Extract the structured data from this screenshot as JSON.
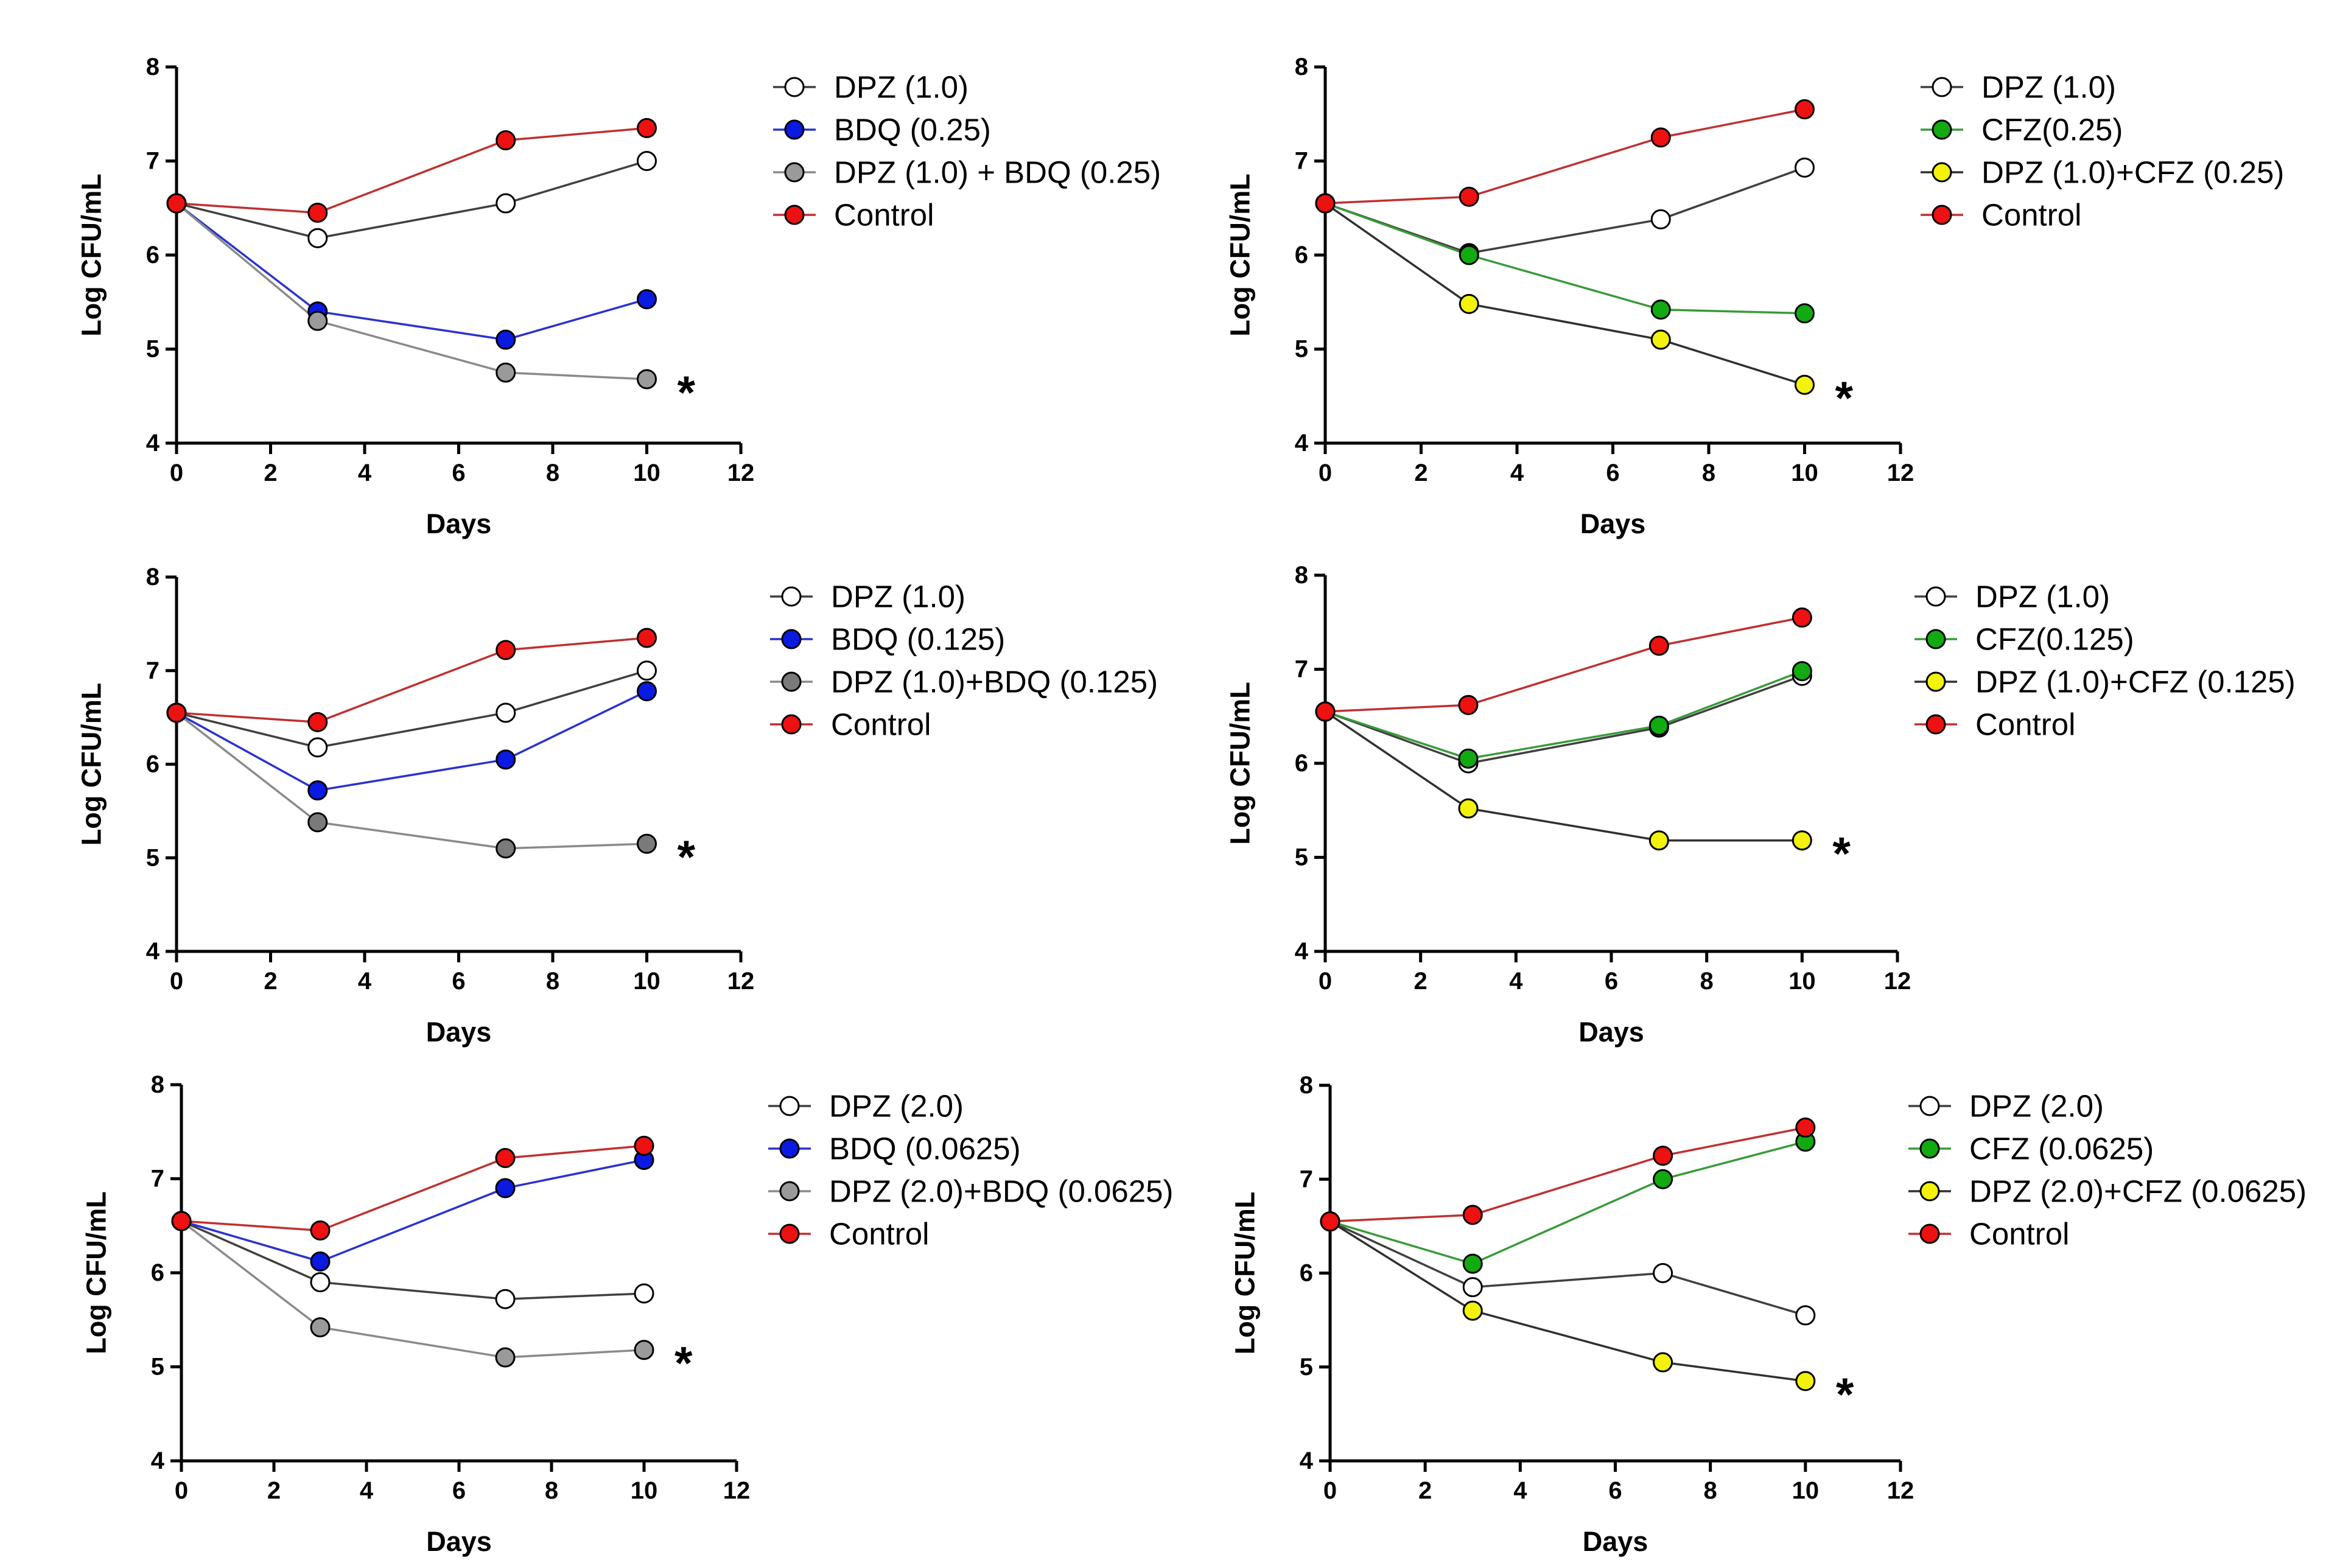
{
  "chart_data": [
    {
      "type": "line",
      "title": "",
      "xlabel": "Days",
      "ylabel": "Log CFU/mL",
      "xlim": [
        0,
        12
      ],
      "ylim": [
        4,
        8
      ],
      "xticks": [
        "0",
        "2",
        "4",
        "6",
        "8",
        "10",
        "12"
      ],
      "yticks": [
        "4",
        "5",
        "6",
        "7",
        "8"
      ],
      "legend_position": "right",
      "annotation": "*",
      "x": [
        0,
        3,
        7,
        10
      ],
      "series": [
        {
          "name": "DPZ (1.0)",
          "color": "#ffffff",
          "line_color": "#404040",
          "values": [
            6.55,
            6.18,
            6.55,
            7.0
          ]
        },
        {
          "name": "BDQ (0.25)",
          "color": "#0a1ae0",
          "line_color": "#2a32d0",
          "values": [
            6.55,
            5.4,
            5.1,
            5.53
          ]
        },
        {
          "name": "DPZ (1.0) + BDQ (0.25)",
          "color": "#9a9a9a",
          "line_color": "#8a8a8a",
          "values": [
            6.55,
            5.3,
            4.75,
            4.68
          ]
        },
        {
          "name": "Control",
          "color": "#ee1111",
          "line_color": "#c03030",
          "values": [
            6.55,
            6.45,
            7.22,
            7.35
          ]
        }
      ]
    },
    {
      "type": "line",
      "title": "",
      "xlabel": "Days",
      "ylabel": "Log CFU/mL",
      "xlim": [
        0,
        12
      ],
      "ylim": [
        4,
        8
      ],
      "xticks": [
        "0",
        "2",
        "4",
        "6",
        "8",
        "10",
        "12"
      ],
      "yticks": [
        "4",
        "5",
        "6",
        "7",
        "8"
      ],
      "legend_position": "right",
      "annotation": "*",
      "x": [
        0,
        3,
        7,
        10
      ],
      "series": [
        {
          "name": "DPZ (1.0)",
          "color": "#ffffff",
          "line_color": "#404040",
          "values": [
            6.55,
            6.02,
            6.38,
            6.93
          ]
        },
        {
          "name": "CFZ(0.25)",
          "color": "#11aa11",
          "line_color": "#3a9a3a",
          "values": [
            6.55,
            6.0,
            5.42,
            5.38
          ]
        },
        {
          "name": "DPZ (1.0)+CFZ (0.25)",
          "color": "#f2f20a",
          "line_color": "#303030",
          "values": [
            6.55,
            5.48,
            5.1,
            4.62
          ]
        },
        {
          "name": "Control",
          "color": "#ee1111",
          "line_color": "#c03030",
          "values": [
            6.55,
            6.62,
            7.25,
            7.55
          ]
        }
      ]
    },
    {
      "type": "line",
      "title": "",
      "xlabel": "Days",
      "ylabel": "Log CFU/mL",
      "xlim": [
        0,
        12
      ],
      "ylim": [
        4,
        8
      ],
      "xticks": [
        "0",
        "2",
        "4",
        "6",
        "8",
        "10",
        "12"
      ],
      "yticks": [
        "4",
        "5",
        "6",
        "7",
        "8"
      ],
      "legend_position": "right",
      "annotation": "*",
      "x": [
        0,
        3,
        7,
        10
      ],
      "series": [
        {
          "name": "DPZ (1.0)",
          "color": "#ffffff",
          "line_color": "#404040",
          "values": [
            6.55,
            6.18,
            6.55,
            7.0
          ]
        },
        {
          "name": "BDQ (0.125)",
          "color": "#0a1ae0",
          "line_color": "#2a32d0",
          "values": [
            6.55,
            5.72,
            6.05,
            6.78
          ]
        },
        {
          "name": "DPZ (1.0)+BDQ (0.125)",
          "color": "#7a7a7a",
          "line_color": "#8a8a8a",
          "values": [
            6.55,
            5.38,
            5.1,
            5.15
          ]
        },
        {
          "name": "Control",
          "color": "#ee1111",
          "line_color": "#c03030",
          "values": [
            6.55,
            6.45,
            7.22,
            7.35
          ]
        }
      ]
    },
    {
      "type": "line",
      "title": "",
      "xlabel": "Days",
      "ylabel": "Log CFU/mL",
      "xlim": [
        0,
        12
      ],
      "ylim": [
        4,
        8
      ],
      "xticks": [
        "0",
        "2",
        "4",
        "6",
        "8",
        "10",
        "12"
      ],
      "yticks": [
        "4",
        "5",
        "6",
        "7",
        "8"
      ],
      "legend_position": "right",
      "annotation": "*",
      "x": [
        0,
        3,
        7,
        10
      ],
      "series": [
        {
          "name": "DPZ (1.0)",
          "color": "#ffffff",
          "line_color": "#404040",
          "values": [
            6.55,
            6.0,
            6.38,
            6.93
          ]
        },
        {
          "name": "CFZ(0.125)",
          "color": "#11aa11",
          "line_color": "#3a9a3a",
          "values": [
            6.55,
            6.05,
            6.4,
            6.98
          ]
        },
        {
          "name": "DPZ (1.0)+CFZ (0.125)",
          "color": "#f2f20a",
          "line_color": "#303030",
          "values": [
            6.55,
            5.52,
            5.18,
            5.18
          ]
        },
        {
          "name": "Control",
          "color": "#ee1111",
          "line_color": "#c03030",
          "values": [
            6.55,
            6.62,
            7.25,
            7.55
          ]
        }
      ]
    },
    {
      "type": "line",
      "title": "",
      "xlabel": "Days",
      "ylabel": "Log CFU/mL",
      "xlim": [
        0,
        12
      ],
      "ylim": [
        4,
        8
      ],
      "xticks": [
        "0",
        "2",
        "4",
        "6",
        "8",
        "10",
        "12"
      ],
      "yticks": [
        "4",
        "5",
        "6",
        "7",
        "8"
      ],
      "legend_position": "right",
      "annotation": "*",
      "x": [
        0,
        3,
        7,
        10
      ],
      "series": [
        {
          "name": "DPZ (2.0)",
          "color": "#ffffff",
          "line_color": "#404040",
          "values": [
            6.55,
            5.9,
            5.72,
            5.78
          ]
        },
        {
          "name": "BDQ (0.0625)",
          "color": "#0a1ae0",
          "line_color": "#2a32d0",
          "values": [
            6.55,
            6.12,
            6.9,
            7.2
          ]
        },
        {
          "name": "DPZ (2.0)+BDQ (0.0625)",
          "color": "#9a9a9a",
          "line_color": "#8a8a8a",
          "values": [
            6.55,
            5.42,
            5.1,
            5.18
          ]
        },
        {
          "name": "Control",
          "color": "#ee1111",
          "line_color": "#c03030",
          "values": [
            6.55,
            6.45,
            7.22,
            7.35
          ]
        }
      ]
    },
    {
      "type": "line",
      "title": "",
      "xlabel": "Days",
      "ylabel": "Log CFU/mL",
      "xlim": [
        0,
        12
      ],
      "ylim": [
        4,
        8
      ],
      "xticks": [
        "0",
        "2",
        "4",
        "6",
        "8",
        "10",
        "12"
      ],
      "yticks": [
        "4",
        "5",
        "6",
        "7",
        "8"
      ],
      "legend_position": "right",
      "annotation": "*",
      "x": [
        0,
        3,
        7,
        10
      ],
      "series": [
        {
          "name": "DPZ (2.0)",
          "color": "#ffffff",
          "line_color": "#404040",
          "values": [
            6.55,
            5.85,
            6.0,
            5.55
          ]
        },
        {
          "name": "CFZ (0.0625)",
          "color": "#11aa11",
          "line_color": "#3a9a3a",
          "values": [
            6.55,
            6.1,
            7.0,
            7.4
          ]
        },
        {
          "name": "DPZ (2.0)+CFZ (0.0625)",
          "color": "#f2f20a",
          "line_color": "#303030",
          "values": [
            6.55,
            5.6,
            5.05,
            4.85
          ]
        },
        {
          "name": "Control",
          "color": "#ee1111",
          "line_color": "#c03030",
          "values": [
            6.55,
            6.62,
            7.25,
            7.55
          ]
        }
      ]
    }
  ]
}
